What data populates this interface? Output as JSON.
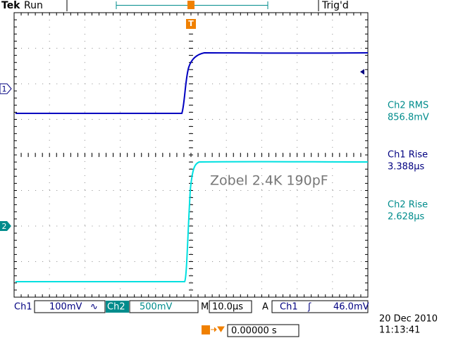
{
  "header": {
    "brand": "Tek",
    "status": "Run",
    "trigger_status": "Trig'd"
  },
  "markers": {
    "trigger": "T",
    "ch1": "1",
    "ch2": "2"
  },
  "measurements": [
    {
      "label": "Ch2 RMS",
      "value": "856.8mV"
    },
    {
      "label": "Ch1 Rise",
      "value": "3.388µs"
    },
    {
      "label": "Ch2 Rise",
      "value": "2.628µs"
    }
  ],
  "annotation": "Zobel 2.4K 190pF",
  "bottom_bar": {
    "ch1": "Ch1",
    "ch1_scale": "100mV",
    "ch1_bw": "∿",
    "ch2": "Ch2",
    "ch2_scale": "500mV",
    "time_label": "M",
    "time_scale": "10.0µs",
    "trigger_mode": "A",
    "trigger_source": "Ch1",
    "trigger_slope": "ʃ",
    "trigger_level": "46.0mV"
  },
  "date": "20 Dec  2010",
  "time": "11:13:41",
  "trigger_position": "0.00000 s"
}
